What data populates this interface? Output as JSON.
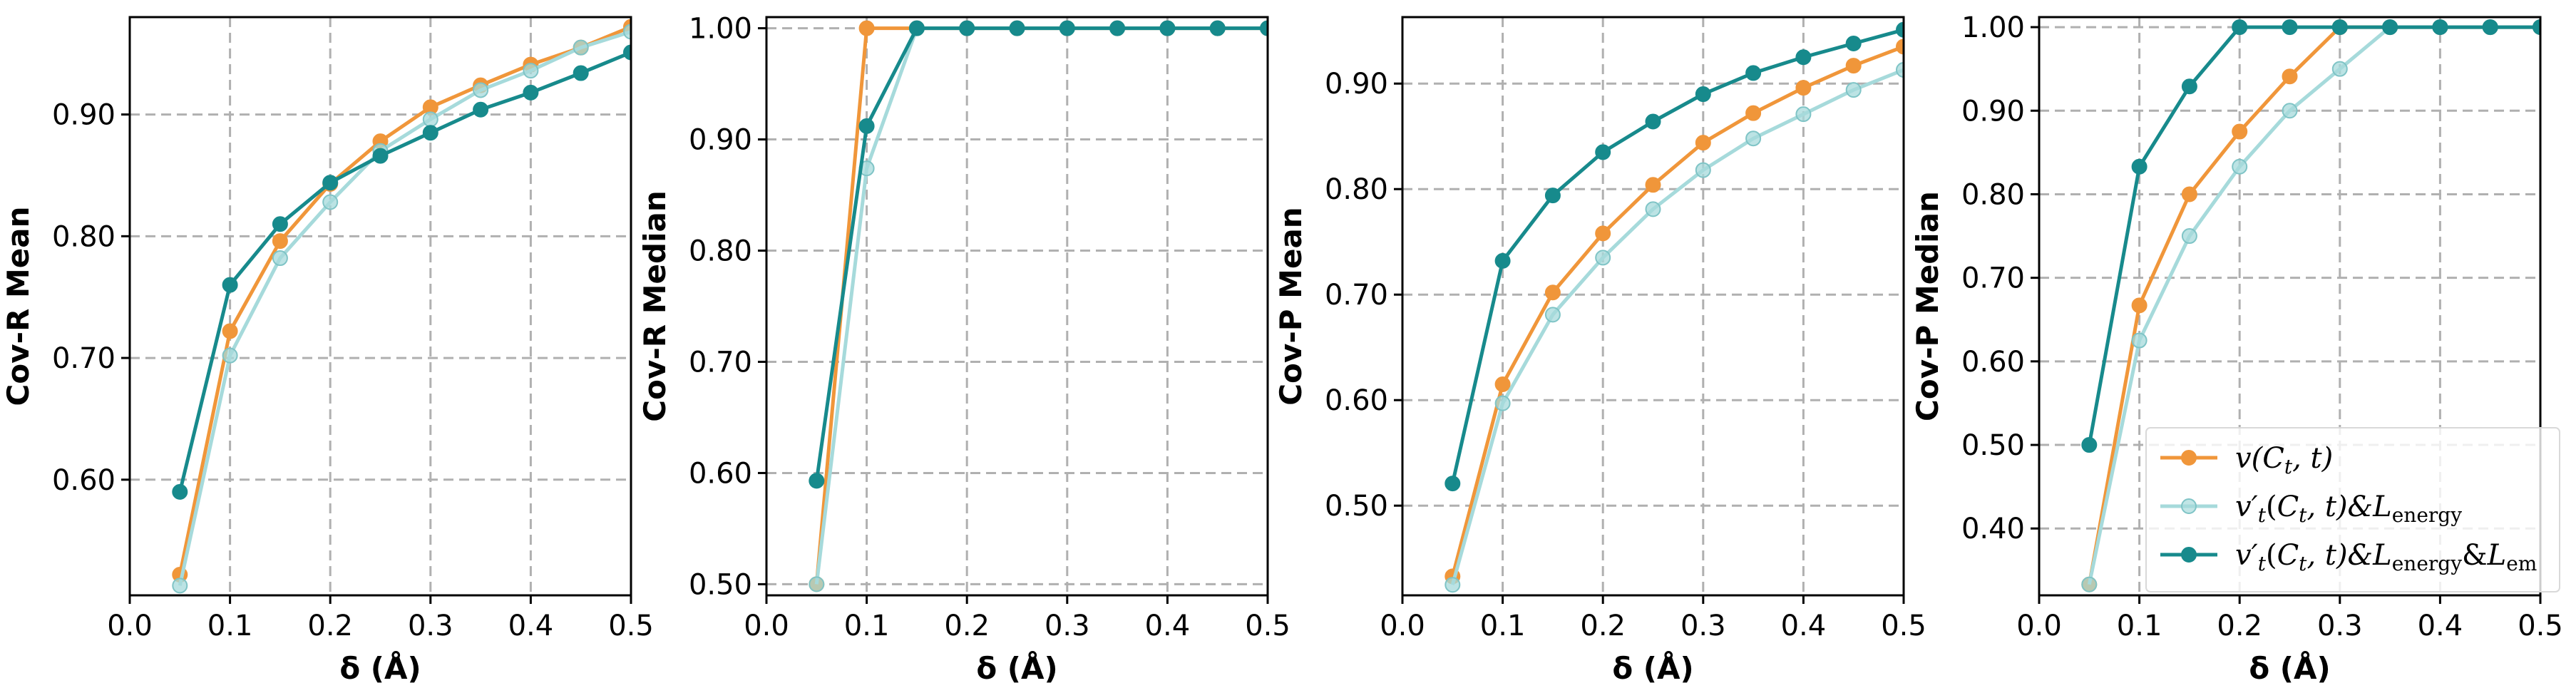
{
  "chart_data": [
    {
      "type": "line",
      "xlabel": "δ (Å)",
      "ylabel": "Cov-R Mean",
      "xlim": [
        0.0,
        0.5
      ],
      "ylim": [
        0.505,
        0.98
      ],
      "xticks": [
        "0.0",
        "0.1",
        "0.2",
        "0.3",
        "0.4",
        "0.5"
      ],
      "yticks": [
        "0.60",
        "0.70",
        "0.80",
        "0.90"
      ],
      "grid": true,
      "x": [
        0.05,
        0.1,
        0.15,
        0.2,
        0.25,
        0.3,
        0.35,
        0.4,
        0.45,
        0.5
      ],
      "series": [
        {
          "values": [
            0.522,
            0.722,
            0.796,
            0.843,
            0.878,
            0.906,
            0.924,
            0.941,
            0.955,
            0.972
          ]
        },
        {
          "values": [
            0.513,
            0.702,
            0.782,
            0.828,
            0.87,
            0.896,
            0.92,
            0.936,
            0.955,
            0.968
          ]
        },
        {
          "values": [
            0.59,
            0.76,
            0.81,
            0.844,
            0.866,
            0.885,
            0.904,
            0.918,
            0.934,
            0.951
          ]
        }
      ]
    },
    {
      "type": "line",
      "xlabel": "δ (Å)",
      "ylabel": "Cov-R Median",
      "xlim": [
        0.0,
        0.5
      ],
      "ylim": [
        0.49,
        1.01
      ],
      "xticks": [
        "0.0",
        "0.1",
        "0.2",
        "0.3",
        "0.4",
        "0.5"
      ],
      "yticks": [
        "0.50",
        "0.60",
        "0.70",
        "0.80",
        "0.90",
        "1.00"
      ],
      "grid": true,
      "x": [
        0.05,
        0.1,
        0.15,
        0.2,
        0.25,
        0.3,
        0.35,
        0.4,
        0.45,
        0.5
      ],
      "series": [
        {
          "values": [
            0.5,
            1.0,
            1.0,
            1.0,
            1.0,
            1.0,
            1.0,
            1.0,
            1.0,
            1.0
          ]
        },
        {
          "values": [
            0.5,
            0.874,
            1.0,
            1.0,
            1.0,
            1.0,
            1.0,
            1.0,
            1.0,
            1.0
          ]
        },
        {
          "values": [
            0.593,
            0.912,
            1.0,
            1.0,
            1.0,
            1.0,
            1.0,
            1.0,
            1.0,
            1.0
          ]
        }
      ]
    },
    {
      "type": "line",
      "xlabel": "δ (Å)",
      "ylabel": "Cov-P Mean",
      "xlim": [
        0.0,
        0.5
      ],
      "ylim": [
        0.415,
        0.963
      ],
      "xticks": [
        "0.0",
        "0.1",
        "0.2",
        "0.3",
        "0.4",
        "0.5"
      ],
      "yticks": [
        "0.50",
        "0.60",
        "0.70",
        "0.80",
        "0.90"
      ],
      "grid": true,
      "x": [
        0.05,
        0.1,
        0.15,
        0.2,
        0.25,
        0.3,
        0.35,
        0.4,
        0.45,
        0.5
      ],
      "series": [
        {
          "values": [
            0.433,
            0.615,
            0.702,
            0.758,
            0.804,
            0.844,
            0.872,
            0.896,
            0.917,
            0.935
          ]
        },
        {
          "values": [
            0.425,
            0.597,
            0.681,
            0.735,
            0.781,
            0.818,
            0.848,
            0.871,
            0.894,
            0.913
          ]
        },
        {
          "values": [
            0.521,
            0.732,
            0.794,
            0.835,
            0.864,
            0.89,
            0.91,
            0.925,
            0.938,
            0.951
          ]
        }
      ]
    },
    {
      "type": "line",
      "xlabel": "δ (Å)",
      "ylabel": "Cov-P Median",
      "xlim": [
        0.0,
        0.5
      ],
      "ylim": [
        0.32,
        1.012
      ],
      "xticks": [
        "0.0",
        "0.1",
        "0.2",
        "0.3",
        "0.4",
        "0.5"
      ],
      "yticks": [
        "0.40",
        "0.50",
        "0.60",
        "0.70",
        "0.80",
        "0.90",
        "1.00"
      ],
      "grid": true,
      "x": [
        0.05,
        0.1,
        0.15,
        0.2,
        0.25,
        0.3,
        0.35,
        0.4,
        0.45,
        0.5
      ],
      "series": [
        {
          "values": [
            0.333,
            0.667,
            0.8,
            0.875,
            0.941,
            1.0,
            1.0,
            1.0,
            1.0,
            1.0
          ]
        },
        {
          "values": [
            0.333,
            0.625,
            0.75,
            0.833,
            0.9,
            0.95,
            1.0,
            1.0,
            1.0,
            1.0
          ]
        },
        {
          "values": [
            0.5,
            0.833,
            0.929,
            1.0,
            1.0,
            1.0,
            1.0,
            1.0,
            1.0,
            1.0
          ]
        }
      ]
    }
  ],
  "legend": {
    "placement": "bottom-right of fourth panel",
    "entries": [
      {
        "prefix": "v(",
        "cal": "C",
        "sub_t": "t",
        "suffix": ", t)",
        "extra": "",
        "subscript": ""
      },
      {
        "prefix": "v′",
        "sub_t_prime": "t",
        "open": "(",
        "cal": "C",
        "sub_t": "t",
        "suffix": ", t)&",
        "script_l": "L",
        "subscript": "energy",
        "extra": ""
      },
      {
        "prefix": "v′",
        "sub_t_prime": "t",
        "open": "(",
        "cal": "C",
        "sub_t": "t",
        "suffix": ", t)&",
        "script_l": "L",
        "subscript": "energy",
        "extra": "&",
        "script_l2": "L",
        "subscript2": "em"
      }
    ]
  },
  "colors": {
    "series": [
      "#f0963a",
      "#a6dadb",
      "#178a8c"
    ],
    "grid": "#b0b0b0",
    "axis": "#000000"
  }
}
